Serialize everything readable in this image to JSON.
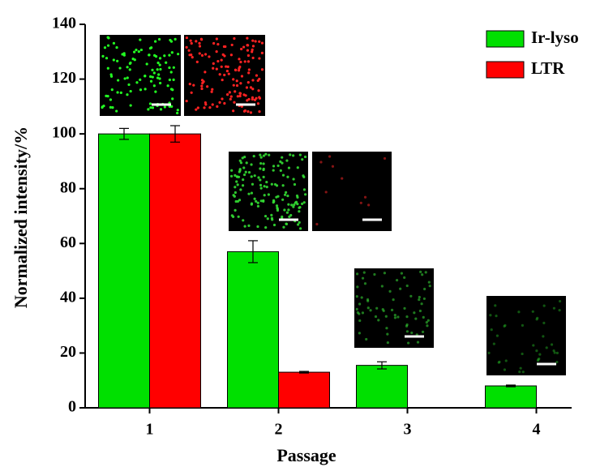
{
  "chart_data": {
    "type": "bar",
    "x_label": "Passage",
    "y_label": "Normalized intensity/%",
    "categories": [
      "1",
      "2",
      "3",
      "4"
    ],
    "series": [
      {
        "name": "Ir-lyso",
        "color": "#00e000",
        "values": [
          100,
          57,
          15.5,
          8
        ],
        "errors": [
          2,
          4,
          1.3,
          0.3
        ]
      },
      {
        "name": "LTR",
        "color": "#ff0000",
        "values": [
          100,
          13,
          null,
          null
        ],
        "errors": [
          3,
          0.3,
          null,
          null
        ]
      }
    ],
    "ylim": [
      0,
      140
    ],
    "yticks": [
      0,
      20,
      40,
      60,
      80,
      100,
      120,
      140
    ],
    "legend": "top-right"
  }
}
